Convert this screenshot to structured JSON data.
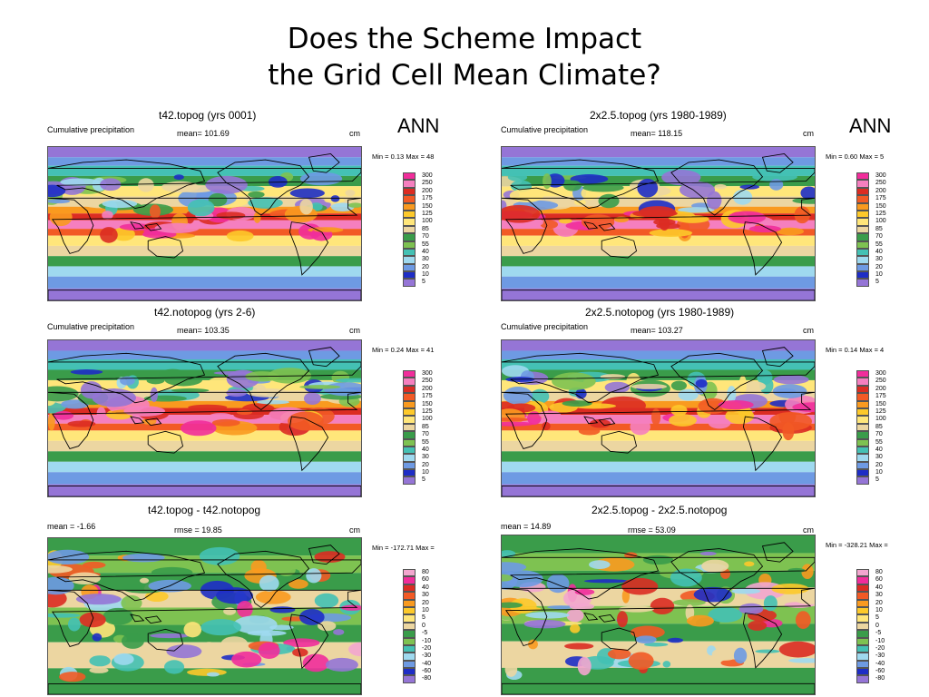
{
  "slide": {
    "title_line1": "Does the Scheme Impact",
    "title_line2": "the Grid Cell Mean Climate?"
  },
  "ann_labels": [
    "ANN",
    "ANN"
  ],
  "colors": {
    "abs_scale": [
      "#f12d9b",
      "#f57fbf",
      "#dc2c22",
      "#f25a25",
      "#f99a1f",
      "#fdc92a",
      "#ffe67a",
      "#ecd6a1",
      "#3a9c4a",
      "#7ec251",
      "#44c1b4",
      "#9fd9ef",
      "#6e9ae3",
      "#1e2dc6",
      "#9575d6"
    ],
    "diff_scale": [
      "#f3a6cf",
      "#f12d9b",
      "#dc2c22",
      "#f25a25",
      "#f99a1f",
      "#fdc92a",
      "#ffe67a",
      "#ecd6a1",
      "#3a9c4a",
      "#7ec251",
      "#44c1b4",
      "#9fd9ef",
      "#6e9ae3",
      "#1e2dc6",
      "#9575d6"
    ]
  },
  "legends": {
    "abs_labels": [
      "300",
      "250",
      "200",
      "175",
      "150",
      "125",
      "100",
      "85",
      "70",
      "55",
      "40",
      "30",
      "20",
      "10",
      "5"
    ],
    "diff_labels": [
      "80",
      "60",
      "40",
      "30",
      "20",
      "10",
      "5",
      "0",
      "-5",
      "-10",
      "-20",
      "-30",
      "-40",
      "-60",
      "-80"
    ]
  },
  "panels": [
    {
      "title": "t42.topog (yrs 0001)",
      "left": "Cumulative precipitation",
      "mid": "mean= 101.69",
      "right": "cm",
      "minmax": "Min =   0.13 Max = 48",
      "scale": "abs"
    },
    {
      "title": "2x2.5.topog (yrs 1980-1989)",
      "left": "Cumulative precipitation",
      "mid": "mean= 118.15",
      "right": "cm",
      "minmax": "Min =   0.60 Max = 5",
      "scale": "abs"
    },
    {
      "title": "t42.notopog (yrs 2-6)",
      "left": "Cumulative precipitation",
      "mid": "mean= 103.35",
      "right": "cm",
      "minmax": "Min =   0.24 Max = 41",
      "scale": "abs"
    },
    {
      "title": "2x2.5.notopog (yrs 1980-1989)",
      "left": "Cumulative precipitation",
      "mid": "mean= 103.27",
      "right": "cm",
      "minmax": "Min =   0.14 Max = 4",
      "scale": "abs"
    },
    {
      "title": "t42.topog - t42.notopog",
      "left": "mean =  -1.66",
      "mid": "rmse =  19.85",
      "right": "cm",
      "minmax": "Min = -172.71 Max =",
      "scale": "diff"
    },
    {
      "title": "2x2.5.topog - 2x2.5.notopog",
      "left": "mean =  14.89",
      "mid": "rmse =  53.09",
      "right": "cm",
      "minmax": "Min = -328.21 Max =",
      "scale": "diff"
    }
  ]
}
